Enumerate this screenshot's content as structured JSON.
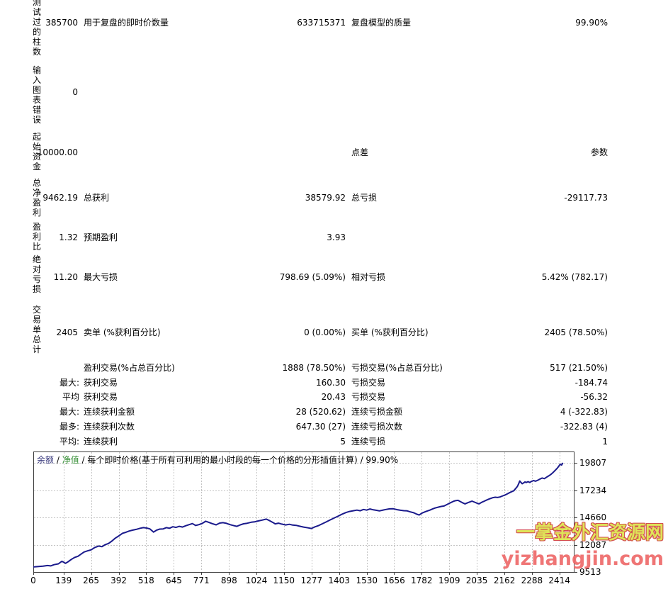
{
  "report": {
    "side_labels": [
      "测试过的柱数",
      "输入图表错误",
      "起始资金",
      "总净盈利",
      "盈利比",
      "绝对亏损",
      "交易单总计"
    ],
    "rows": [
      {
        "left": "385700",
        "l_label": "用于复盘的即时价数量",
        "mid": "633715371",
        "m_label": "复盘模型的质量",
        "right": "99.90%"
      },
      {
        "left": "0"
      },
      {
        "left": "10000.00",
        "m_label": "点差",
        "right": "参数"
      },
      {
        "left": "9462.19",
        "l_label": "总获利",
        "mid": "38579.92",
        "m_label": "总亏损",
        "right": "-29117.73"
      },
      {
        "left": "1.32",
        "l_label": "预期盈利",
        "mid": "3.93"
      },
      {
        "left": "11.20",
        "l_label": "最大亏损",
        "mid": "798.69 (5.09%)",
        "m_label": "相对亏损",
        "right": "5.42% (782.17)"
      },
      {
        "left": "2405",
        "l_label": "卖单 (%获利百分比)",
        "mid": "0 (0.00%)",
        "m_label": "买单 (%获利百分比)",
        "right": "2405 (78.50%)"
      },
      {
        "l_label": "盈利交易(%占总百分比)",
        "mid": "1888 (78.50%)",
        "m_label": "亏损交易(%占总百分比)",
        "right": "517 (21.50%)"
      },
      {
        "prefix": "最大:",
        "l_label": "获利交易",
        "mid": "160.30",
        "m_label": "亏损交易",
        "right": "-184.74"
      },
      {
        "prefix": "平均",
        "l_label": "获利交易",
        "mid": "20.43",
        "m_label": "亏损交易",
        "right": "-56.32"
      },
      {
        "prefix": "最大:",
        "l_label": "连续获利金额",
        "mid": "28 (520.62)",
        "m_label": "连续亏损金额",
        "right": "4 (-322.83)"
      },
      {
        "prefix": "最多:",
        "l_label": "连续获利次数",
        "mid": "647.30 (27)",
        "m_label": "连续亏损次数",
        "right": "-322.83 (4)"
      },
      {
        "prefix": "平均:",
        "l_label": "连续获利",
        "mid": "5",
        "m_label": "连续亏损",
        "right": "1"
      }
    ]
  },
  "chart": {
    "legend": {
      "balance": "余额",
      "equity": "净值",
      "sep": " / ",
      "desc": "每个即时价格(基于所有可利用的最小时段的每一个价格的分形插值计算)",
      "quality": "99.90%"
    },
    "colors": {
      "balance_label": "#3a3a7d",
      "equity_label": "#2e8b2e",
      "line": "#1a1a8c",
      "grid": "#c4c4c4",
      "border": "#3c3c3c"
    }
  },
  "chart_data": {
    "type": "line",
    "title": "余额 / 净值 / 每个即时价格(基于所有可利用的最小时段的每一个价格的分形插值计算) / 99.90%",
    "xlabel": "",
    "ylabel": "",
    "grid": true,
    "legend_position": "top-left-inside",
    "x_ticks": [
      0,
      139,
      265,
      392,
      518,
      645,
      771,
      898,
      1024,
      1150,
      1277,
      1403,
      1530,
      1656,
      1782,
      1909,
      2035,
      2162,
      2288,
      2414
    ],
    "y_ticks": [
      9513,
      12087,
      14660,
      17234,
      19807
    ],
    "xlim": [
      0,
      2480
    ],
    "ylim": [
      9513,
      20880
    ],
    "series": [
      {
        "name": "余额",
        "color": "#1a1a8c",
        "points": [
          [
            0,
            9990
          ],
          [
            25,
            10030
          ],
          [
            45,
            10060
          ],
          [
            65,
            10120
          ],
          [
            80,
            10090
          ],
          [
            95,
            10200
          ],
          [
            115,
            10280
          ],
          [
            131,
            10520
          ],
          [
            140,
            10430
          ],
          [
            148,
            10330
          ],
          [
            160,
            10480
          ],
          [
            175,
            10700
          ],
          [
            190,
            10890
          ],
          [
            205,
            11000
          ],
          [
            220,
            11210
          ],
          [
            233,
            11400
          ],
          [
            250,
            11510
          ],
          [
            265,
            11600
          ],
          [
            281,
            11810
          ],
          [
            300,
            11960
          ],
          [
            315,
            11900
          ],
          [
            329,
            12080
          ],
          [
            345,
            12200
          ],
          [
            360,
            12420
          ],
          [
            376,
            12700
          ],
          [
            395,
            12950
          ],
          [
            410,
            13170
          ],
          [
            424,
            13250
          ],
          [
            440,
            13380
          ],
          [
            455,
            13460
          ],
          [
            472,
            13530
          ],
          [
            490,
            13640
          ],
          [
            505,
            13700
          ],
          [
            520,
            13660
          ],
          [
            535,
            13580
          ],
          [
            552,
            13280
          ],
          [
            565,
            13450
          ],
          [
            580,
            13560
          ],
          [
            595,
            13570
          ],
          [
            610,
            13700
          ],
          [
            625,
            13640
          ],
          [
            640,
            13780
          ],
          [
            655,
            13720
          ],
          [
            670,
            13820
          ],
          [
            685,
            13750
          ],
          [
            700,
            13880
          ],
          [
            715,
            13980
          ],
          [
            730,
            14080
          ],
          [
            745,
            13900
          ],
          [
            760,
            13980
          ],
          [
            775,
            14090
          ],
          [
            791,
            14300
          ],
          [
            805,
            14200
          ],
          [
            820,
            14080
          ],
          [
            839,
            13960
          ],
          [
            855,
            14130
          ],
          [
            870,
            14170
          ],
          [
            887,
            14100
          ],
          [
            900,
            14000
          ],
          [
            915,
            13910
          ],
          [
            934,
            13820
          ],
          [
            950,
            13960
          ],
          [
            965,
            14060
          ],
          [
            982,
            14110
          ],
          [
            1000,
            14210
          ],
          [
            1015,
            14240
          ],
          [
            1030,
            14320
          ],
          [
            1050,
            14410
          ],
          [
            1069,
            14500
          ],
          [
            1085,
            14350
          ],
          [
            1100,
            14180
          ],
          [
            1110,
            14050
          ],
          [
            1125,
            14120
          ],
          [
            1140,
            14030
          ],
          [
            1158,
            13950
          ],
          [
            1175,
            14010
          ],
          [
            1190,
            13940
          ],
          [
            1206,
            13910
          ],
          [
            1225,
            13820
          ],
          [
            1240,
            13750
          ],
          [
            1260,
            13680
          ],
          [
            1276,
            13620
          ],
          [
            1290,
            13750
          ],
          [
            1310,
            13900
          ],
          [
            1325,
            14050
          ],
          [
            1343,
            14230
          ],
          [
            1360,
            14400
          ],
          [
            1380,
            14600
          ],
          [
            1397,
            14760
          ],
          [
            1415,
            14950
          ],
          [
            1435,
            15120
          ],
          [
            1451,
            15220
          ],
          [
            1470,
            15300
          ],
          [
            1485,
            15350
          ],
          [
            1500,
            15290
          ],
          [
            1515,
            15410
          ],
          [
            1530,
            15350
          ],
          [
            1545,
            15460
          ],
          [
            1560,
            15380
          ],
          [
            1575,
            15330
          ],
          [
            1588,
            15280
          ],
          [
            1605,
            15360
          ],
          [
            1620,
            15420
          ],
          [
            1635,
            15470
          ],
          [
            1652,
            15480
          ],
          [
            1670,
            15390
          ],
          [
            1685,
            15340
          ],
          [
            1700,
            15300
          ],
          [
            1716,
            15280
          ],
          [
            1730,
            15180
          ],
          [
            1745,
            15100
          ],
          [
            1760,
            14960
          ],
          [
            1770,
            14890
          ],
          [
            1785,
            15080
          ],
          [
            1802,
            15220
          ],
          [
            1820,
            15350
          ],
          [
            1832,
            15460
          ],
          [
            1844,
            15550
          ],
          [
            1860,
            15640
          ],
          [
            1872,
            15700
          ],
          [
            1885,
            15740
          ],
          [
            1900,
            15900
          ],
          [
            1915,
            16050
          ],
          [
            1930,
            16200
          ],
          [
            1940,
            16250
          ],
          [
            1949,
            16270
          ],
          [
            1960,
            16150
          ],
          [
            1970,
            16040
          ],
          [
            1981,
            15940
          ],
          [
            1995,
            16060
          ],
          [
            2005,
            16140
          ],
          [
            2013,
            16200
          ],
          [
            2025,
            16100
          ],
          [
            2035,
            16010
          ],
          [
            2045,
            15940
          ],
          [
            2060,
            16110
          ],
          [
            2070,
            16200
          ],
          [
            2077,
            16270
          ],
          [
            2090,
            16390
          ],
          [
            2100,
            16460
          ],
          [
            2109,
            16530
          ],
          [
            2120,
            16570
          ],
          [
            2130,
            16540
          ],
          [
            2141,
            16590
          ],
          [
            2155,
            16700
          ],
          [
            2165,
            16780
          ],
          [
            2173,
            16860
          ],
          [
            2185,
            16990
          ],
          [
            2195,
            17090
          ],
          [
            2205,
            17180
          ],
          [
            2213,
            17380
          ],
          [
            2221,
            17580
          ],
          [
            2227,
            17840
          ],
          [
            2232,
            18100
          ],
          [
            2238,
            17960
          ],
          [
            2243,
            17840
          ],
          [
            2250,
            17920
          ],
          [
            2256,
            18010
          ],
          [
            2262,
            17950
          ],
          [
            2270,
            18040
          ],
          [
            2278,
            17960
          ],
          [
            2285,
            18050
          ],
          [
            2295,
            18140
          ],
          [
            2305,
            18080
          ],
          [
            2315,
            18170
          ],
          [
            2325,
            18280
          ],
          [
            2335,
            18380
          ],
          [
            2345,
            18320
          ],
          [
            2355,
            18450
          ],
          [
            2365,
            18580
          ],
          [
            2375,
            18720
          ],
          [
            2385,
            18900
          ],
          [
            2395,
            19100
          ],
          [
            2405,
            19320
          ],
          [
            2412,
            19520
          ],
          [
            2418,
            19680
          ],
          [
            2424,
            19600
          ],
          [
            2430,
            19807
          ]
        ]
      }
    ]
  },
  "watermark": {
    "line1": "一掌金外汇资源网",
    "line2": "yizhangjin.com",
    "fill_color": "#dde24c",
    "outline_color": "#d04040",
    "text_color": "#ee6a6a"
  }
}
